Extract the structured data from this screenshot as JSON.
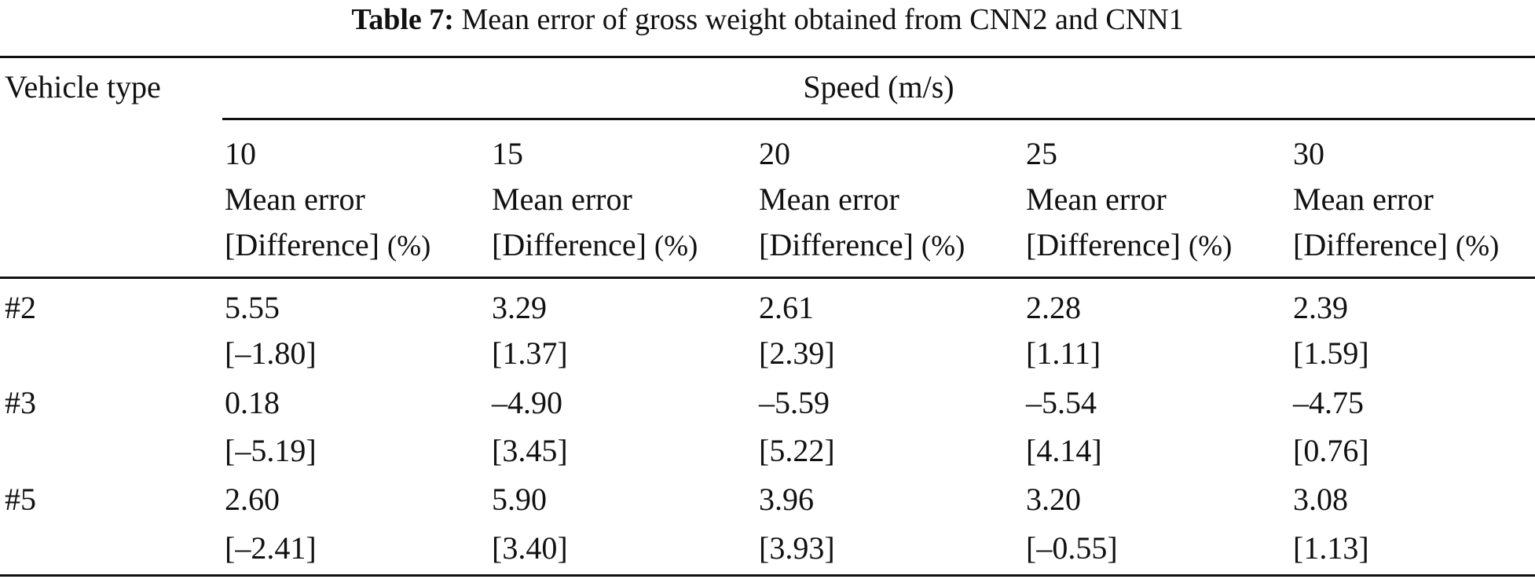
{
  "caption": {
    "label": "Table 7:",
    "text": "Mean error of gross weight obtained from CNN2 and CNN1"
  },
  "header": {
    "row_label": "Vehicle type",
    "group": "Speed (m/s)",
    "columns": [
      {
        "speed": "10",
        "line1": "Mean error",
        "line2": "[Difference]",
        "unit": "(%)"
      },
      {
        "speed": "15",
        "line1": "Mean error",
        "line2": "[Difference]",
        "unit": "(%)"
      },
      {
        "speed": "20",
        "line1": "Mean error",
        "line2": "[Difference]",
        "unit": "(%)"
      },
      {
        "speed": "25",
        "line1": "Mean error",
        "line2": "[Difference]",
        "unit": "(%)"
      },
      {
        "speed": "30",
        "line1": "Mean error",
        "line2": "[Difference]",
        "unit": "(%)"
      }
    ]
  },
  "rows": [
    {
      "vehicle": "#2",
      "mean": [
        "5.55",
        "3.29",
        "2.61",
        "2.28",
        "2.39"
      ],
      "diff": [
        "[–1.80]",
        "[1.37]",
        "[2.39]",
        "[1.11]",
        "[1.59]"
      ]
    },
    {
      "vehicle": "#3",
      "mean": [
        "0.18",
        "–4.90",
        "–5.59",
        "–5.54",
        "–4.75"
      ],
      "diff": [
        "[–5.19]",
        "[3.45]",
        "[5.22]",
        "[4.14]",
        "[0.76]"
      ]
    },
    {
      "vehicle": "#5",
      "mean": [
        "2.60",
        "5.90",
        "3.96",
        "3.20",
        "3.08"
      ],
      "diff": [
        "[–2.41]",
        "[3.40]",
        "[3.93]",
        "[–0.55]",
        "[1.13]"
      ]
    }
  ]
}
